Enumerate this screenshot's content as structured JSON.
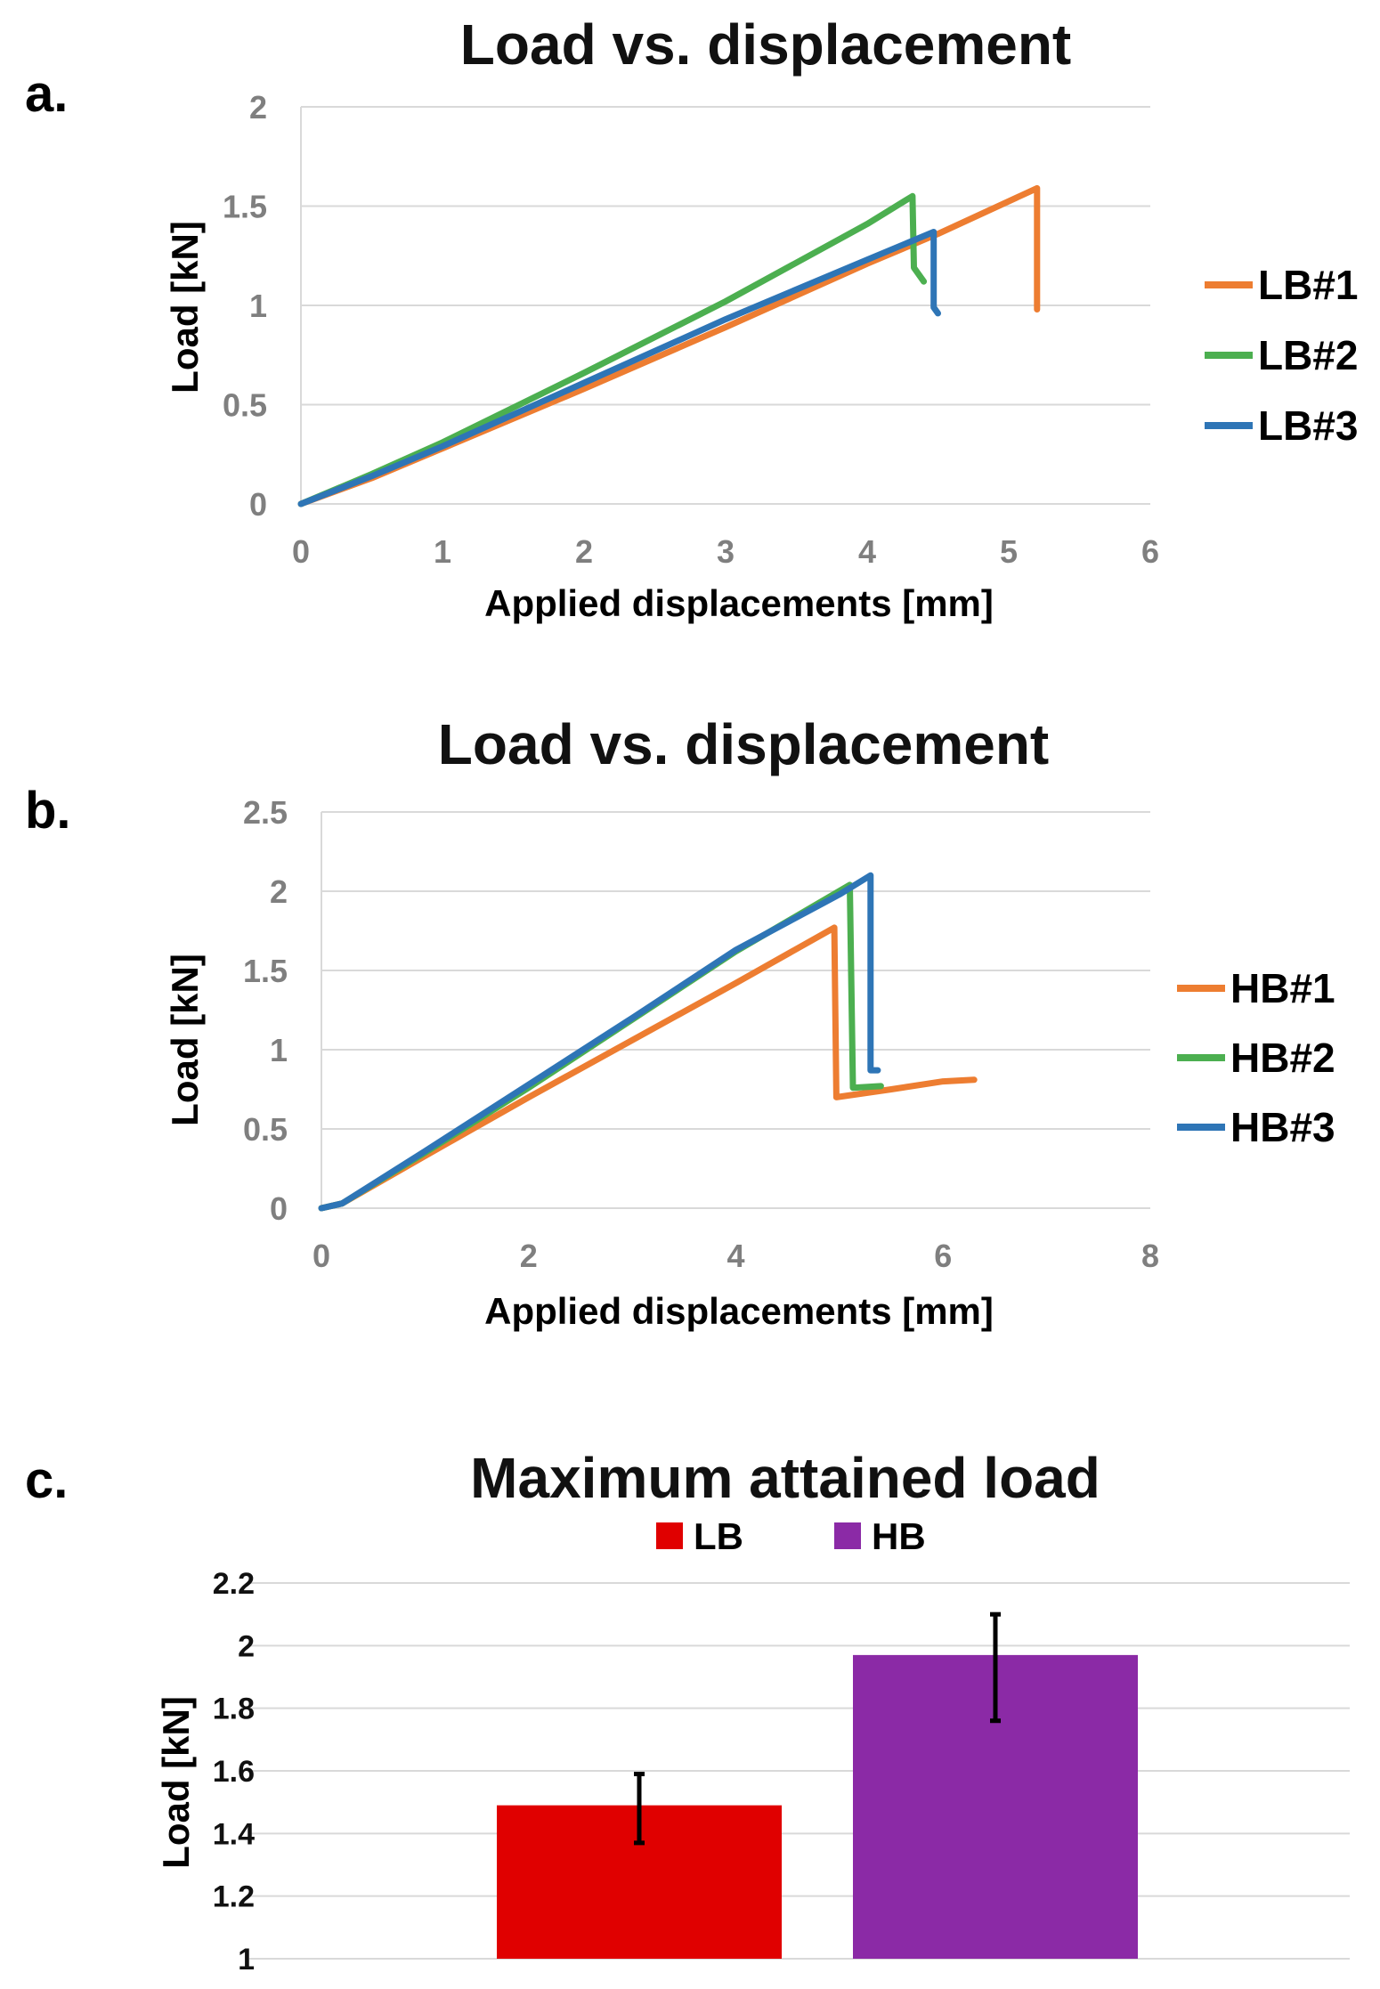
{
  "panels": {
    "a": "a.",
    "b": "b.",
    "c": "c."
  },
  "chart_data": [
    {
      "type": "line",
      "title": "Load vs. displacement",
      "xlabel": "Applied displacements [mm]",
      "ylabel": "Load [kN]",
      "xlim": [
        0,
        6
      ],
      "ylim": [
        0,
        2
      ],
      "xticks": [
        "0",
        "1",
        "2",
        "3",
        "4",
        "5",
        "6"
      ],
      "yticks": [
        "0",
        "0.5",
        "1",
        "1.5",
        "2"
      ],
      "grid": "horizontal",
      "legend": "right",
      "series": [
        {
          "name": "LB#1",
          "color": "#ED7D31",
          "points": [
            [
              0,
              0
            ],
            [
              0.5,
              0.13
            ],
            [
              1,
              0.28
            ],
            [
              2,
              0.58
            ],
            [
              3,
              0.89
            ],
            [
              4,
              1.21
            ],
            [
              4.5,
              1.36
            ],
            [
              5.2,
              1.59
            ],
            [
              5.2,
              0.98
            ]
          ]
        },
        {
          "name": "LB#2",
          "color": "#4CAF50",
          "points": [
            [
              0,
              0
            ],
            [
              0.5,
              0.15
            ],
            [
              1,
              0.31
            ],
            [
              2,
              0.66
            ],
            [
              3,
              1.02
            ],
            [
              4,
              1.41
            ],
            [
              4.32,
              1.55
            ],
            [
              4.33,
              1.19
            ],
            [
              4.4,
              1.12
            ]
          ]
        },
        {
          "name": "LB#3",
          "color": "#2E75B6",
          "points": [
            [
              0,
              0
            ],
            [
              0.5,
              0.14
            ],
            [
              1,
              0.29
            ],
            [
              2,
              0.61
            ],
            [
              3,
              0.93
            ],
            [
              4,
              1.23
            ],
            [
              4.47,
              1.37
            ],
            [
              4.47,
              0.99
            ],
            [
              4.5,
              0.96
            ]
          ]
        }
      ]
    },
    {
      "type": "line",
      "title": "Load vs. displacement",
      "xlabel": "Applied displacements [mm]",
      "ylabel": "Load [kN]",
      "xlim": [
        0,
        8
      ],
      "ylim": [
        0,
        2.5
      ],
      "xticks": [
        "0",
        "2",
        "4",
        "6",
        "8"
      ],
      "yticks": [
        "0",
        "0.5",
        "1",
        "1.5",
        "2",
        "2.5"
      ],
      "grid": "horizontal",
      "legend": "right",
      "series": [
        {
          "name": "HB#1",
          "color": "#ED7D31",
          "points": [
            [
              0,
              0
            ],
            [
              0.2,
              0.03
            ],
            [
              1,
              0.33
            ],
            [
              2,
              0.7
            ],
            [
              3,
              1.06
            ],
            [
              4,
              1.42
            ],
            [
              4.95,
              1.77
            ],
            [
              4.97,
              0.7
            ],
            [
              5.5,
              0.75
            ],
            [
              6,
              0.8
            ],
            [
              6.3,
              0.81
            ]
          ]
        },
        {
          "name": "HB#2",
          "color": "#4CAF50",
          "points": [
            [
              0,
              0
            ],
            [
              0.2,
              0.03
            ],
            [
              1,
              0.35
            ],
            [
              2,
              0.76
            ],
            [
              3,
              1.19
            ],
            [
              4,
              1.62
            ],
            [
              5.1,
              2.04
            ],
            [
              5.13,
              0.76
            ],
            [
              5.4,
              0.77
            ]
          ]
        },
        {
          "name": "HB#3",
          "color": "#2E75B6",
          "points": [
            [
              0,
              0
            ],
            [
              0.2,
              0.03
            ],
            [
              1,
              0.36
            ],
            [
              2,
              0.78
            ],
            [
              3,
              1.2
            ],
            [
              4,
              1.63
            ],
            [
              5,
              1.98
            ],
            [
              5.3,
              2.1
            ],
            [
              5.3,
              0.87
            ],
            [
              5.37,
              0.87
            ]
          ]
        }
      ]
    },
    {
      "type": "bar",
      "title": "Maximum attained load",
      "ylabel": "Load [kN]",
      "ylim": [
        1,
        2.2
      ],
      "yticks": [
        "1",
        "1.2",
        "1.4",
        "1.6",
        "1.8",
        "2",
        "2.2"
      ],
      "grid": "horizontal",
      "legend": "top",
      "categories": [
        ""
      ],
      "series": [
        {
          "name": "LB",
          "color": "#E00000",
          "values": [
            1.49
          ],
          "error": [
            [
              1.37,
              1.59
            ]
          ]
        },
        {
          "name": "HB",
          "color": "#8B2AA6",
          "values": [
            1.97
          ],
          "error": [
            [
              1.76,
              2.1
            ]
          ]
        }
      ]
    }
  ]
}
